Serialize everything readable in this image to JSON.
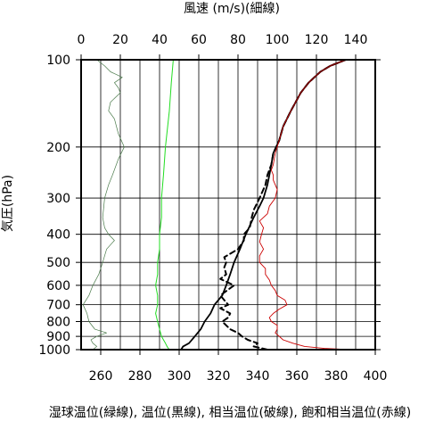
{
  "chart_data": {
    "type": "line",
    "title": "",
    "top_axis_label": "風速 (m/s)(細線)",
    "left_axis_label": "気圧(hPa)",
    "bottom_axis_label": "湿球温位(緑線), 温位(黒線), 相当温位(破線), 飽和相当温位(赤線)",
    "pressure_axis": {
      "scale": "log",
      "range": [
        1000,
        100
      ],
      "ticks": [
        100,
        200,
        300,
        400,
        500,
        600,
        700,
        800,
        900,
        1000
      ]
    },
    "theta_axis": {
      "range": [
        250,
        400
      ],
      "ticks": [
        260,
        280,
        300,
        320,
        340,
        360,
        380,
        400
      ]
    },
    "wind_axis": {
      "range": [
        0,
        150
      ],
      "ticks": [
        0,
        20,
        40,
        60,
        80,
        100,
        120,
        140
      ]
    },
    "grid": true,
    "colors": {
      "wind_speed": "#4a7a4a",
      "wet_bulb_potential_temperature": "#22dd22",
      "potential_temperature": "#000000",
      "equivalent_potential_temperature": "#000000",
      "saturated_equivalent_potential_temperature": "#cc0000",
      "saturated_equivalent_potential_temperature_upper": "#7a0000"
    },
    "series": [
      {
        "key": "wind_speed",
        "axis": "wind",
        "style": "thin",
        "points": [
          [
            1000,
            6
          ],
          [
            975,
            8
          ],
          [
            950,
            6
          ],
          [
            925,
            5
          ],
          [
            900,
            8
          ],
          [
            875,
            13
          ],
          [
            850,
            7
          ],
          [
            800,
            4
          ],
          [
            750,
            3
          ],
          [
            700,
            1
          ],
          [
            650,
            4
          ],
          [
            600,
            6
          ],
          [
            550,
            9
          ],
          [
            500,
            11
          ],
          [
            450,
            13
          ],
          [
            420,
            17
          ],
          [
            400,
            14
          ],
          [
            380,
            12
          ],
          [
            350,
            11
          ],
          [
            300,
            12
          ],
          [
            270,
            14
          ],
          [
            250,
            16
          ],
          [
            220,
            19
          ],
          [
            200,
            22
          ],
          [
            180,
            19
          ],
          [
            160,
            17
          ],
          [
            150,
            14
          ],
          [
            140,
            15
          ],
          [
            130,
            20
          ],
          [
            125,
            19
          ],
          [
            120,
            17
          ],
          [
            115,
            21
          ],
          [
            110,
            15
          ],
          [
            105,
            12
          ],
          [
            100,
            8
          ]
        ]
      },
      {
        "key": "wet_bulb_potential_temperature",
        "axis": "theta",
        "style": "solid",
        "points": [
          [
            1000,
            295
          ],
          [
            980,
            294
          ],
          [
            950,
            293
          ],
          [
            900,
            291
          ],
          [
            850,
            290
          ],
          [
            800,
            289
          ],
          [
            750,
            288
          ],
          [
            700,
            289
          ],
          [
            650,
            289
          ],
          [
            600,
            288
          ],
          [
            550,
            289
          ],
          [
            500,
            289
          ],
          [
            450,
            290
          ],
          [
            400,
            290
          ],
          [
            350,
            291
          ],
          [
            300,
            291
          ],
          [
            250,
            292
          ],
          [
            200,
            293
          ],
          [
            150,
            295
          ],
          [
            120,
            296
          ],
          [
            100,
            297
          ]
        ]
      },
      {
        "key": "potential_temperature",
        "axis": "theta",
        "style": "solid",
        "points": [
          [
            1000,
            301
          ],
          [
            975,
            302
          ],
          [
            950,
            305
          ],
          [
            900,
            308
          ],
          [
            850,
            311
          ],
          [
            800,
            313
          ],
          [
            750,
            316
          ],
          [
            700,
            318
          ],
          [
            650,
            322
          ],
          [
            600,
            324
          ],
          [
            550,
            326
          ],
          [
            500,
            328
          ],
          [
            450,
            331
          ],
          [
            400,
            334
          ],
          [
            350,
            338
          ],
          [
            320,
            341
          ],
          [
            300,
            343
          ],
          [
            270,
            345
          ],
          [
            250,
            346
          ],
          [
            230,
            347
          ],
          [
            210,
            348
          ],
          [
            190,
            351
          ],
          [
            170,
            353
          ],
          [
            150,
            357
          ],
          [
            130,
            362
          ],
          [
            120,
            366
          ],
          [
            110,
            372
          ],
          [
            105,
            377
          ],
          [
            100,
            385
          ]
        ]
      },
      {
        "key": "equivalent_potential_temperature",
        "axis": "theta",
        "style": "dashed",
        "points": [
          [
            1000,
            345
          ],
          [
            975,
            338
          ],
          [
            950,
            340
          ],
          [
            925,
            335
          ],
          [
            900,
            332
          ],
          [
            875,
            330
          ],
          [
            850,
            326
          ],
          [
            800,
            322
          ],
          [
            775,
            325
          ],
          [
            750,
            326
          ],
          [
            720,
            321
          ],
          [
            700,
            325
          ],
          [
            650,
            321
          ],
          [
            600,
            328
          ],
          [
            570,
            321
          ],
          [
            550,
            324
          ],
          [
            520,
            323
          ],
          [
            500,
            324
          ],
          [
            480,
            323
          ],
          [
            450,
            330
          ],
          [
            420,
            333
          ],
          [
            400,
            333
          ],
          [
            380,
            336
          ],
          [
            350,
            337
          ],
          [
            330,
            338
          ],
          [
            300,
            341
          ],
          [
            270,
            344
          ],
          [
            250,
            345
          ],
          [
            230,
            347
          ],
          [
            210,
            348
          ],
          [
            190,
            351
          ],
          [
            170,
            353
          ],
          [
            150,
            357
          ],
          [
            130,
            362
          ],
          [
            120,
            366
          ],
          [
            110,
            372
          ],
          [
            105,
            377
          ],
          [
            100,
            385
          ]
        ]
      },
      {
        "key": "saturated_equivalent_potential_temperature",
        "axis": "theta",
        "style": "solid",
        "points": [
          [
            1000,
            387
          ],
          [
            990,
            374
          ],
          [
            975,
            364
          ],
          [
            950,
            358
          ],
          [
            925,
            353
          ],
          [
            900,
            351
          ],
          [
            875,
            349
          ],
          [
            850,
            350
          ],
          [
            825,
            350
          ],
          [
            800,
            347
          ],
          [
            775,
            346
          ],
          [
            750,
            348
          ],
          [
            725,
            351
          ],
          [
            700,
            355
          ],
          [
            675,
            354
          ],
          [
            650,
            350
          ],
          [
            625,
            349
          ],
          [
            600,
            347
          ],
          [
            575,
            346
          ],
          [
            550,
            344
          ],
          [
            525,
            344
          ],
          [
            500,
            341
          ],
          [
            475,
            341
          ],
          [
            450,
            343
          ],
          [
            425,
            341
          ],
          [
            400,
            342
          ],
          [
            380,
            343
          ],
          [
            360,
            341
          ],
          [
            340,
            345
          ],
          [
            320,
            346
          ],
          [
            300,
            349
          ],
          [
            280,
            350
          ],
          [
            260,
            348
          ],
          [
            250,
            348
          ],
          [
            240,
            347
          ],
          [
            230,
            348
          ],
          [
            210,
            349
          ],
          [
            190,
            351
          ],
          [
            170,
            353
          ],
          [
            150,
            357
          ]
        ]
      },
      {
        "key": "saturated_equivalent_potential_temperature_upper",
        "axis": "theta",
        "style": "solid",
        "points": [
          [
            150,
            357
          ],
          [
            130,
            362
          ],
          [
            120,
            366
          ],
          [
            110,
            372
          ],
          [
            105,
            377
          ],
          [
            100,
            385
          ]
        ]
      }
    ]
  }
}
